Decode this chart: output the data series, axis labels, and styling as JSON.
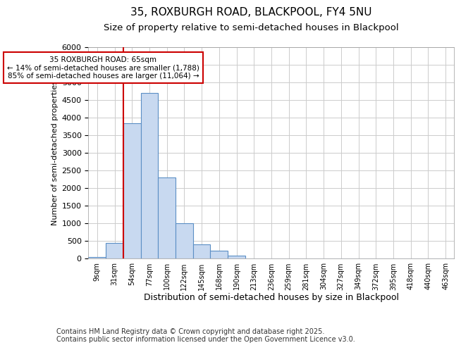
{
  "title1": "35, ROXBURGH ROAD, BLACKPOOL, FY4 5NU",
  "title2": "Size of property relative to semi-detached houses in Blackpool",
  "xlabel": "Distribution of semi-detached houses by size in Blackpool",
  "ylabel": "Number of semi-detached properties",
  "annotation_title": "35 ROXBURGH ROAD: 65sqm",
  "annotation_left": "← 14% of semi-detached houses are smaller (1,788)",
  "annotation_right": "85% of semi-detached houses are larger (11,064) →",
  "footer": "Contains HM Land Registry data © Crown copyright and database right 2025.\nContains public sector information licensed under the Open Government Licence v3.0.",
  "bar_values": [
    50,
    450,
    3850,
    4700,
    2300,
    1000,
    400,
    225,
    75,
    0,
    0,
    0,
    0,
    0,
    0,
    0,
    0,
    0,
    0,
    0,
    0
  ],
  "categories": [
    "9sqm",
    "31sqm",
    "54sqm",
    "77sqm",
    "100sqm",
    "122sqm",
    "145sqm",
    "168sqm",
    "190sqm",
    "213sqm",
    "236sqm",
    "259sqm",
    "281sqm",
    "304sqm",
    "327sqm",
    "349sqm",
    "372sqm",
    "395sqm",
    "418sqm",
    "440sqm",
    "463sqm"
  ],
  "bar_color": "#c8d9f0",
  "bar_edge_color": "#5b8fc5",
  "vline_color": "#cc0000",
  "annotation_box_color": "#cc0000",
  "ylim": [
    0,
    6000
  ],
  "yticks": [
    0,
    500,
    1000,
    1500,
    2000,
    2500,
    3000,
    3500,
    4000,
    4500,
    5000,
    5500,
    6000
  ],
  "bg_color": "#ffffff",
  "plot_bg_color": "#ffffff",
  "grid_color": "#cccccc",
  "title1_fontsize": 11,
  "title2_fontsize": 9.5,
  "xlabel_fontsize": 9,
  "ylabel_fontsize": 8,
  "footer_fontsize": 7
}
